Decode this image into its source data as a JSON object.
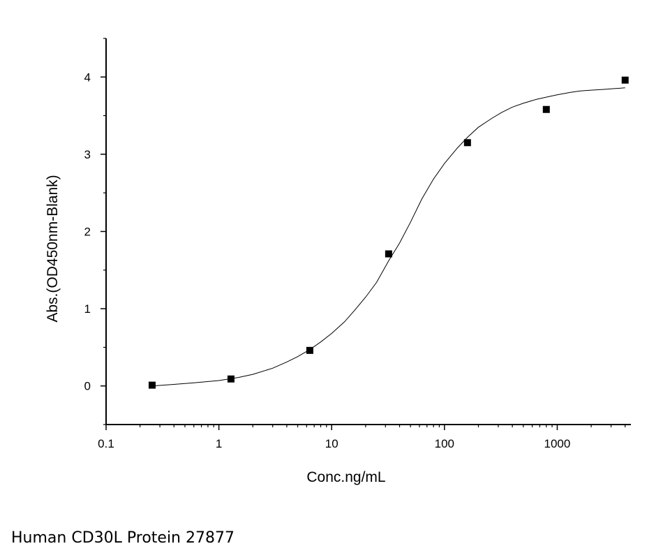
{
  "chart_data": {
    "type": "scatter",
    "xlabel": "Conc.ng/mL",
    "ylabel": "Abs.(OD450nm-Blank)",
    "x_scale": "log",
    "xlim": [
      0.1,
      4500
    ],
    "ylim": [
      -0.5,
      4.5
    ],
    "x_ticks": [
      0.1,
      1,
      10,
      100,
      1000
    ],
    "x_tick_labels": [
      "0.1",
      "1",
      "10",
      "100",
      "1000"
    ],
    "y_ticks": [
      0,
      1,
      2,
      3,
      4
    ],
    "y_tick_labels": [
      "0",
      "1",
      "2",
      "3",
      "4"
    ],
    "grid": false,
    "series": [
      {
        "type": "scatter",
        "marker": "square",
        "color": "#000000",
        "x": [
          0.256,
          1.28,
          6.4,
          32,
          160,
          800,
          4000
        ],
        "y": [
          0.01,
          0.09,
          0.46,
          1.71,
          3.15,
          3.58,
          3.96
        ]
      },
      {
        "type": "line",
        "color": "#000000",
        "x": [
          0.256,
          0.4,
          0.6,
          1.0,
          1.5,
          2.0,
          3.0,
          4.0,
          5.0,
          6.4,
          8.0,
          10,
          13,
          16,
          20,
          25,
          32,
          40,
          50,
          63,
          80,
          100,
          130,
          160,
          200,
          260,
          320,
          400,
          500,
          650,
          800,
          1000,
          1300,
          1600,
          2000,
          2600,
          3200,
          4000
        ],
        "y": [
          0.0,
          0.02,
          0.04,
          0.07,
          0.11,
          0.15,
          0.23,
          0.31,
          0.38,
          0.47,
          0.57,
          0.68,
          0.83,
          0.98,
          1.15,
          1.34,
          1.62,
          1.85,
          2.12,
          2.42,
          2.68,
          2.88,
          3.08,
          3.22,
          3.35,
          3.46,
          3.54,
          3.61,
          3.66,
          3.71,
          3.74,
          3.77,
          3.8,
          3.82,
          3.83,
          3.84,
          3.85,
          3.86
        ]
      }
    ]
  },
  "caption": "Human CD30L Protein 27877"
}
